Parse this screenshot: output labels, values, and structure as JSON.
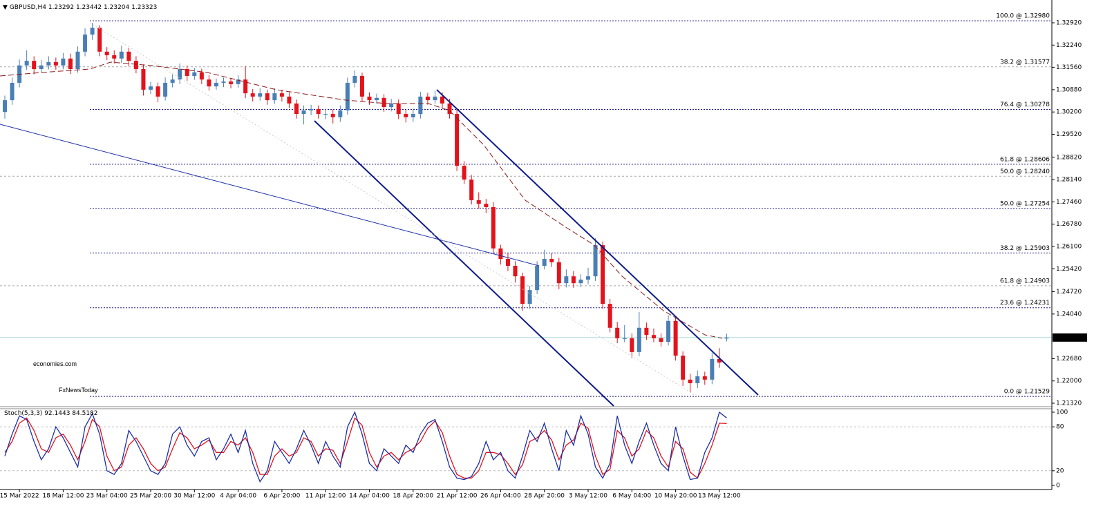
{
  "chart_data": [
    {
      "type": "candlestick",
      "title": "GBPUSD,H4",
      "categories": [
        null,
        null,
        "15 Mar 2022",
        null,
        null,
        null,
        null,
        null,
        "18 Mar 12:00",
        null,
        null,
        null,
        null,
        null,
        "23 Mar 04:00",
        null,
        null,
        null,
        null,
        null,
        "25 Mar 20:00",
        null,
        null,
        null,
        null,
        null,
        "30 Mar 12:00",
        null,
        null,
        null,
        null,
        null,
        "4 Apr 04:00",
        null,
        null,
        null,
        null,
        null,
        "6 Apr 20:00",
        null,
        null,
        null,
        null,
        null,
        "11 Apr 12:00",
        null,
        null,
        null,
        null,
        null,
        "14 Apr 04:00",
        null,
        null,
        null,
        null,
        null,
        "18 Apr 20:00",
        null,
        null,
        null,
        null,
        null,
        "21 Apr 12:00",
        null,
        null,
        null,
        null,
        null,
        "26 Apr 04:00",
        null,
        null,
        null,
        null,
        null,
        "28 Apr 20:00",
        null,
        null,
        null,
        null,
        null,
        "3 May 12:00",
        null,
        null,
        null,
        null,
        null,
        "6 May 04:00",
        null,
        null,
        null,
        null,
        null,
        "10 May 20:00",
        null,
        null,
        null,
        null,
        null,
        "13 May 12:00",
        null
      ],
      "open": [
        1.302,
        1.3056,
        1.3109,
        1.3162,
        1.3176,
        1.3151,
        1.3162,
        1.3172,
        1.3162,
        1.3183,
        1.3151,
        1.3204,
        1.3256,
        1.3277,
        1.3204,
        1.3193,
        1.3183,
        1.3204,
        1.3176,
        1.3151,
        1.3088,
        1.3098,
        1.3067,
        1.3109,
        1.3119,
        1.3151,
        1.313,
        1.3141,
        1.3119,
        1.3098,
        1.3109,
        1.3113,
        1.3105,
        1.3119,
        1.3077,
        1.3067,
        1.3077,
        1.3056,
        1.3077,
        1.3067,
        1.3046,
        1.3014,
        1.3025,
        1.3029,
        1.3014,
        1.3014,
        1.3004,
        1.3025,
        1.3109,
        1.313,
        1.3067,
        1.3056,
        1.3063,
        1.3035,
        1.3046,
        1.3014,
        1.3004,
        1.3014,
        1.3067,
        1.3056,
        1.3067,
        1.3046,
        1.3014,
        1.2856,
        1.2814,
        1.2751,
        1.274,
        1.273,
        1.2604,
        1.2572,
        1.2551,
        1.2519,
        1.2435,
        1.2477,
        1.2551,
        1.2572,
        1.2562,
        1.2498,
        1.2519,
        1.2498,
        1.2509,
        1.2519,
        1.2614,
        1.2435,
        1.2362,
        1.233,
        1.233,
        1.2288,
        1.2362,
        1.234,
        1.233,
        1.2319,
        1.2383,
        1.2277,
        1.2204,
        1.2193,
        1.2214,
        1.2204,
        1.2267,
        1.23292
      ],
      "high": [
        1.307,
        1.3125,
        1.318,
        1.3208,
        1.319,
        1.3178,
        1.319,
        1.3186,
        1.32,
        1.3198,
        1.322,
        1.3275,
        1.3292,
        1.3285,
        1.3218,
        1.3208,
        1.3222,
        1.3215,
        1.319,
        1.3165,
        1.3112,
        1.311,
        1.3125,
        1.3135,
        1.3168,
        1.3162,
        1.3155,
        1.3152,
        1.3132,
        1.3122,
        1.3125,
        1.3124,
        1.3132,
        1.316,
        1.309,
        1.3092,
        1.3088,
        1.3092,
        1.3088,
        1.308,
        1.3058,
        1.304,
        1.3042,
        1.304,
        1.303,
        1.3028,
        1.304,
        1.3125,
        1.3147,
        1.314,
        1.308,
        1.3076,
        1.3074,
        1.306,
        1.3058,
        1.3028,
        1.303,
        1.3082,
        1.3078,
        1.3085,
        1.308,
        1.306,
        1.303,
        1.287,
        1.2828,
        1.2775,
        1.2755,
        1.2745,
        1.2615,
        1.259,
        1.2565,
        1.253,
        1.249,
        1.2565,
        1.26,
        1.259,
        1.2575,
        1.254,
        1.2535,
        1.2525,
        1.2545,
        1.2635,
        1.2625,
        1.245,
        1.238,
        1.237,
        1.2345,
        1.241,
        1.2378,
        1.236,
        1.2345,
        1.24,
        1.2392,
        1.229,
        1.2222,
        1.2232,
        1.2228,
        1.2285,
        1.23,
        1.23442
      ],
      "low": [
        1.3,
        1.3042,
        1.3095,
        1.3148,
        1.3135,
        1.314,
        1.315,
        1.3148,
        1.315,
        1.3136,
        1.314,
        1.319,
        1.324,
        1.319,
        1.3178,
        1.3168,
        1.317,
        1.316,
        1.3138,
        1.307,
        1.3075,
        1.305,
        1.3055,
        1.3095,
        1.3105,
        1.3115,
        1.3118,
        1.3105,
        1.3085,
        1.3088,
        1.3096,
        1.3092,
        1.3094,
        1.3062,
        1.3052,
        1.3055,
        1.3042,
        1.3045,
        1.3052,
        1.3032,
        1.3,
        1.2982,
        1.301,
        1.3,
        1.2998,
        1.2985,
        1.299,
        1.3012,
        1.3095,
        1.3052,
        1.3042,
        1.3045,
        1.302,
        1.3022,
        1.2998,
        1.2988,
        1.299,
        1.3,
        1.3042,
        1.3045,
        1.303,
        1.3,
        1.284,
        1.28,
        1.2738,
        1.2725,
        1.2712,
        1.259,
        1.2555,
        1.2535,
        1.25,
        1.2414,
        1.242,
        1.2465,
        1.254,
        1.2548,
        1.248,
        1.2485,
        1.2484,
        1.2486,
        1.2495,
        1.2505,
        1.242,
        1.2348,
        1.2315,
        1.2318,
        1.227,
        1.2275,
        1.2325,
        1.2318,
        1.2305,
        1.2308,
        1.2262,
        1.2185,
        1.2165,
        1.2178,
        1.2188,
        1.219,
        1.224,
        1.23204
      ],
      "close": [
        1.3056,
        1.3109,
        1.3162,
        1.3176,
        1.3151,
        1.3162,
        1.3172,
        1.3162,
        1.3183,
        1.3151,
        1.3204,
        1.3256,
        1.3277,
        1.3204,
        1.3193,
        1.3183,
        1.3204,
        1.3176,
        1.3151,
        1.3088,
        1.3098,
        1.3067,
        1.3109,
        1.3119,
        1.3151,
        1.313,
        1.3141,
        1.3119,
        1.3098,
        1.3109,
        1.3113,
        1.3105,
        1.3119,
        1.3077,
        1.3067,
        1.3077,
        1.3056,
        1.3077,
        1.3067,
        1.3046,
        1.3014,
        1.3025,
        1.3029,
        1.3014,
        1.3014,
        1.3004,
        1.3025,
        1.3109,
        1.313,
        1.3067,
        1.3056,
        1.3063,
        1.3035,
        1.3046,
        1.3014,
        1.3004,
        1.3014,
        1.3067,
        1.3056,
        1.3067,
        1.3046,
        1.3014,
        1.2856,
        1.2814,
        1.2751,
        1.274,
        1.273,
        1.2604,
        1.2572,
        1.2551,
        1.2519,
        1.2435,
        1.2477,
        1.2551,
        1.2572,
        1.2562,
        1.2498,
        1.2519,
        1.2498,
        1.2509,
        1.2519,
        1.2614,
        1.2435,
        1.2362,
        1.233,
        1.233,
        1.2288,
        1.2362,
        1.234,
        1.233,
        1.2319,
        1.2383,
        1.2277,
        1.2204,
        1.2193,
        1.2214,
        1.2204,
        1.2267,
        1.2256,
        1.23323
      ],
      "up_color": "#4a7fb5",
      "down_color": "#e3121b",
      "ylim": [
        1.21236,
        1.33615
      ],
      "yticks": [
        {
          "value": 1.3292,
          "label": "1.32920"
        },
        {
          "value": 1.3224,
          "label": "1.32240"
        },
        {
          "value": 1.3156,
          "label": "1.31560"
        },
        {
          "value": 1.3088,
          "label": "1.30880"
        },
        {
          "value": 1.302,
          "label": "1.30200"
        },
        {
          "value": 1.2952,
          "label": "1.29520"
        },
        {
          "value": 1.2882,
          "label": "1.28820"
        },
        {
          "value": 1.2814,
          "label": "1.28140"
        },
        {
          "value": 1.2746,
          "label": "1.27460"
        },
        {
          "value": 1.2678,
          "label": "1.26780"
        },
        {
          "value": 1.261,
          "label": "1.26100"
        },
        {
          "value": 1.2542,
          "label": "1.25420"
        },
        {
          "value": 1.2472,
          "label": "1.24720"
        },
        {
          "value": 1.2404,
          "label": "1.24040"
        },
        {
          "value": 1.2268,
          "label": "1.22680"
        },
        {
          "value": 1.22,
          "label": "1.22000"
        },
        {
          "value": 1.2132,
          "label": "1.21320"
        }
      ],
      "fib_levels": [
        {
          "value": 1.3298,
          "label": "100.0 @ 1.32980",
          "color": "#1c1c8a"
        },
        {
          "value": 1.31577,
          "label": "38.2 @ 1.31577",
          "color": "#a8a8a8"
        },
        {
          "value": 1.30278,
          "label": "76.4 @ 1.30278",
          "color": "#1c1c8a"
        },
        {
          "value": 1.28606,
          "label": "61.8 @ 1.28606",
          "color": "#1c1c8a"
        },
        {
          "value": 1.2824,
          "label": "50.0 @ 1.28240",
          "color": "#a8a8a8"
        },
        {
          "value": 1.27254,
          "label": "50.0 @ 1.27254",
          "color": "#1c1c8a"
        },
        {
          "value": 1.25903,
          "label": "38.2 @ 1.25903",
          "color": "#1c1c8a"
        },
        {
          "value": 1.24903,
          "label": "61.8 @ 1.24903",
          "color": "#a8a8a8"
        },
        {
          "value": 1.24231,
          "label": "23.6 @ 1.24231",
          "color": "#1c1c8a"
        },
        {
          "value": 1.21529,
          "label": "0.0 @ 1.21529",
          "color": "#1c1c8a"
        }
      ],
      "price_line_color": "#9fd8d8",
      "watermark": [
        "economies.com",
        "FxNewsToday"
      ]
    },
    {
      "type": "line",
      "title": "Stoch(5,3,3)",
      "series": [
        {
          "color": "#1c2fa8",
          "values": [
            40,
            70,
            95,
            90,
            60,
            35,
            50,
            80,
            65,
            45,
            25,
            80,
            98,
            70,
            20,
            15,
            30,
            75,
            60,
            40,
            20,
            15,
            30,
            70,
            80,
            55,
            40,
            60,
            65,
            35,
            50,
            70,
            45,
            75,
            30,
            5,
            20,
            60,
            45,
            30,
            50,
            75,
            55,
            30,
            60,
            40,
            25,
            80,
            100,
            70,
            30,
            20,
            50,
            40,
            30,
            55,
            45,
            70,
            85,
            90,
            60,
            25,
            10,
            8,
            12,
            30,
            60,
            35,
            45,
            20,
            10,
            40,
            75,
            60,
            85,
            50,
            20,
            75,
            55,
            95,
            70,
            25,
            10,
            30,
            95,
            55,
            30,
            60,
            85,
            55,
            30,
            20,
            80,
            40,
            8,
            10,
            45,
            65,
            100,
            92.1443
          ]
        },
        {
          "color": "#e3121b",
          "values": [
            45,
            60,
            85,
            92,
            75,
            50,
            45,
            65,
            70,
            55,
            35,
            60,
            90,
            80,
            40,
            20,
            25,
            55,
            65,
            50,
            30,
            20,
            25,
            50,
            72,
            65,
            50,
            55,
            62,
            45,
            45,
            60,
            55,
            65,
            45,
            15,
            15,
            40,
            50,
            40,
            45,
            65,
            60,
            40,
            50,
            48,
            30,
            60,
            92,
            82,
            45,
            25,
            40,
            45,
            35,
            45,
            50,
            60,
            78,
            88,
            72,
            40,
            15,
            10,
            10,
            20,
            45,
            45,
            42,
            30,
            15,
            28,
            60,
            65,
            75,
            62,
            35,
            55,
            62,
            85,
            78,
            40,
            15,
            22,
            75,
            65,
            40,
            50,
            75,
            65,
            40,
            25,
            60,
            50,
            18,
            10,
            30,
            55,
            85,
            84.5182
          ]
        }
      ],
      "ylim": [
        -4.7,
        104.7
      ],
      "yticks": [
        0,
        20,
        80,
        100
      ],
      "levels": [
        20,
        80
      ]
    }
  ]
}
